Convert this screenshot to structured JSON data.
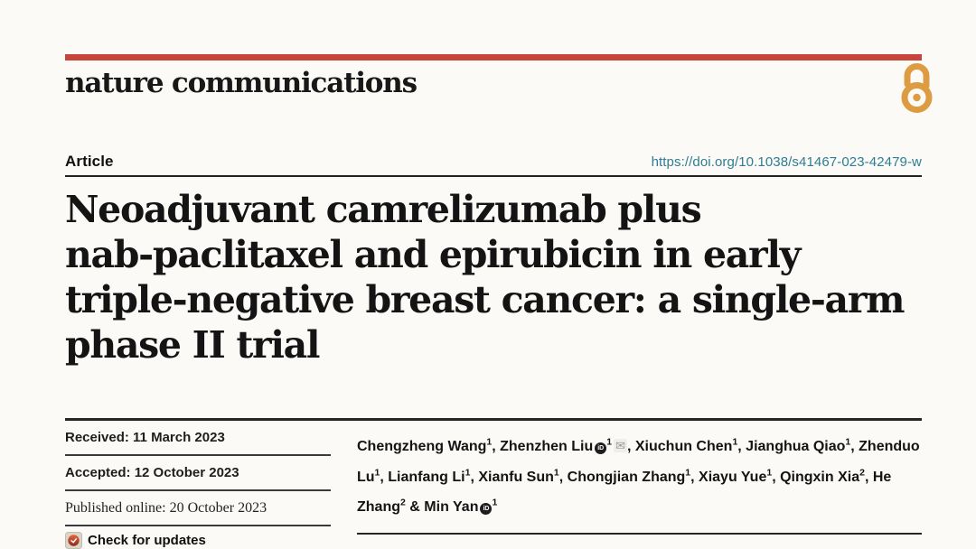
{
  "journal": {
    "wordmark": "nature communications",
    "brand_bar_color": "#c8453c",
    "open_access_color": "#dd9c42"
  },
  "header": {
    "article_label": "Article",
    "doi": "https://doi.org/10.1038/s41467-023-42479-w",
    "doi_color": "#2e7d93"
  },
  "title_lines": [
    "Neoadjuvant camrelizumab plus",
    "nab-paclitaxel and epirubicin in early",
    "triple-negative breast cancer: a single-arm",
    "phase II trial"
  ],
  "dates": [
    {
      "label": "Received:",
      "value": "11 March 2023"
    },
    {
      "label": "Accepted:",
      "value": "12 October 2023"
    },
    {
      "label": "Published online:",
      "value": "20 October 2023"
    }
  ],
  "badge": {
    "label": "Check for updates"
  },
  "authors": {
    "list": [
      {
        "name": "Chengzheng Wang",
        "sup": "1"
      },
      {
        "name": "Zhenzhen Liu",
        "sup": "1",
        "orcid": true,
        "email": true
      },
      {
        "name": "Xiuchun Chen",
        "sup": "1"
      },
      {
        "name": "Jianghua Qiao",
        "sup": "1"
      },
      {
        "name": "Zhenduo Lu",
        "sup": "1"
      },
      {
        "name": "Lianfang Li",
        "sup": "1"
      },
      {
        "name": "Xianfu Sun",
        "sup": "1"
      },
      {
        "name": "Chongjian Zhang",
        "sup": "1"
      },
      {
        "name": "Xiayu Yue",
        "sup": "1"
      },
      {
        "name": "Qingxin Xia",
        "sup": "2"
      },
      {
        "name": "He Zhang",
        "sup": "2"
      },
      {
        "name": "Min Yan",
        "sup": "1",
        "orcid": true
      }
    ],
    "separator": ", ",
    "last_separator": " & ",
    "icons": {
      "orcid": "iD",
      "email": "✉"
    }
  }
}
